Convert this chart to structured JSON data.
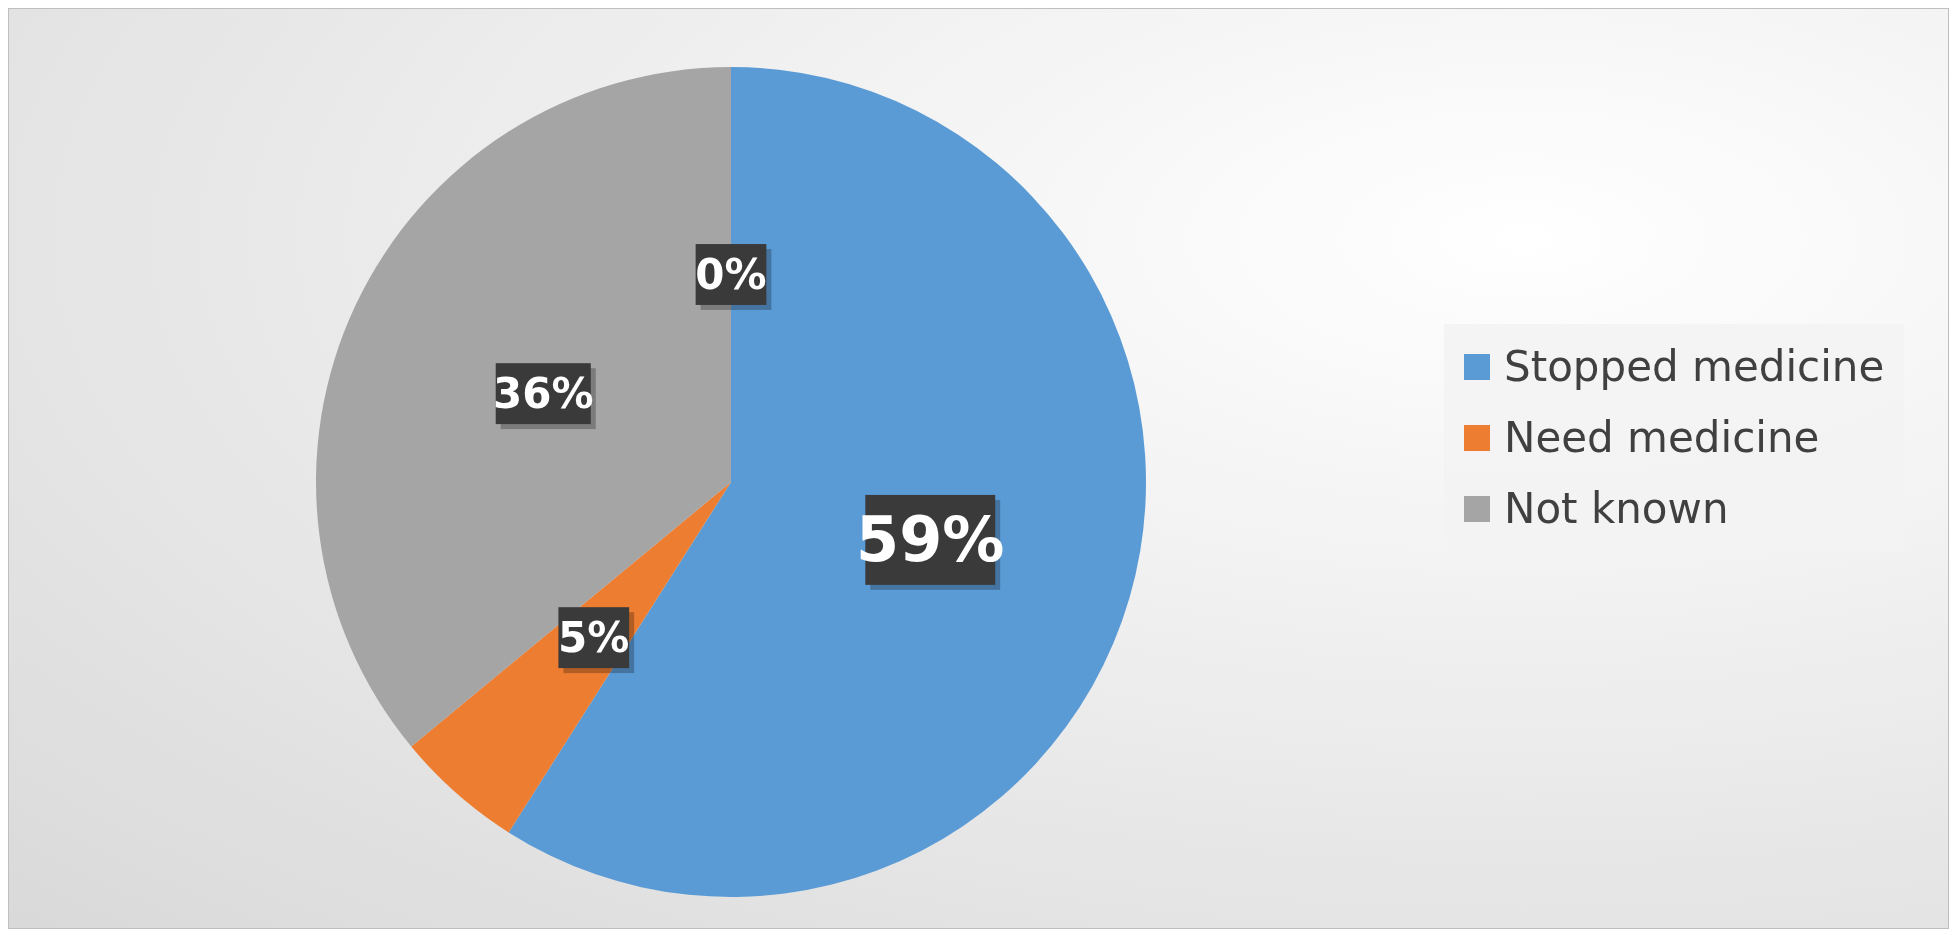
{
  "chart_data": {
    "type": "pie",
    "categories": [
      "Stopped medicine",
      "Need medicine",
      "Not known",
      null
    ],
    "values": [
      59,
      5,
      36,
      0
    ],
    "colors": [
      "#5b9bd5",
      "#ed7d31",
      "#a5a5a5",
      "#ffc000"
    ],
    "value_labels": [
      "59%",
      "5%",
      "36%",
      "0%"
    ],
    "legend": "right"
  }
}
